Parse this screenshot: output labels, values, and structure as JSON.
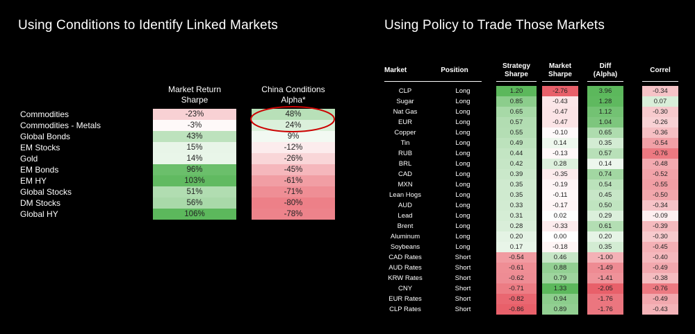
{
  "left_title": "Using Conditions to Identify Linked Markets",
  "right_title": "Using Policy to Trade Those Markets",
  "chart_data": [
    {
      "type": "table",
      "title": "Using Conditions to Identify Linked Markets",
      "columns": [
        "Market Return Sharpe",
        "China Conditions Alpha*"
      ],
      "rows": [
        "Commodities",
        "Commodities - Metals",
        "Global Bonds",
        "EM Stocks",
        "Gold",
        "EM Bonds",
        "EM HY",
        "Global Stocks",
        "DM Stocks",
        "Global HY"
      ],
      "market_return_sharpe": [
        "-23%",
        "-3%",
        "43%",
        "15%",
        "14%",
        "96%",
        "103%",
        "51%",
        "56%",
        "106%"
      ],
      "china_conditions_alpha": [
        "48%",
        "24%",
        "9%",
        "-12%",
        "-26%",
        "-45%",
        "-61%",
        "-71%",
        "-80%",
        "-78%"
      ],
      "annotation": "circled: Commodities and Commodities - Metals alpha values"
    },
    {
      "type": "table",
      "title": "Using Policy to Trade Those Markets",
      "headers": {
        "market": "Market",
        "position": "Position",
        "strategy_sharpe": [
          "Strategy",
          "Sharpe"
        ],
        "market_sharpe": [
          "Market",
          "Sharpe"
        ],
        "diff": [
          "Diff",
          "(Alpha)"
        ],
        "correl": "Correl"
      },
      "rows": [
        {
          "market": "CLP",
          "position": "Long",
          "strategy_sharpe": "1.20",
          "market_sharpe": "-2.76",
          "diff": "3.96",
          "correl": "-0.34"
        },
        {
          "market": "Sugar",
          "position": "Long",
          "strategy_sharpe": "0.85",
          "market_sharpe": "-0.43",
          "diff": "1.28",
          "correl": "0.07"
        },
        {
          "market": "Nat Gas",
          "position": "Long",
          "strategy_sharpe": "0.65",
          "market_sharpe": "-0.47",
          "diff": "1.12",
          "correl": "-0.30"
        },
        {
          "market": "EUR",
          "position": "Long",
          "strategy_sharpe": "0.57",
          "market_sharpe": "-0.47",
          "diff": "1.04",
          "correl": "-0.26"
        },
        {
          "market": "Copper",
          "position": "Long",
          "strategy_sharpe": "0.55",
          "market_sharpe": "-0.10",
          "diff": "0.65",
          "correl": "-0.36"
        },
        {
          "market": "Tin",
          "position": "Long",
          "strategy_sharpe": "0.49",
          "market_sharpe": "0.14",
          "diff": "0.35",
          "correl": "-0.54"
        },
        {
          "market": "RUB",
          "position": "Long",
          "strategy_sharpe": "0.44",
          "market_sharpe": "-0.13",
          "diff": "0.57",
          "correl": "-0.76"
        },
        {
          "market": "BRL",
          "position": "Long",
          "strategy_sharpe": "0.42",
          "market_sharpe": "0.28",
          "diff": "0.14",
          "correl": "-0.48"
        },
        {
          "market": "CAD",
          "position": "Long",
          "strategy_sharpe": "0.39",
          "market_sharpe": "-0.35",
          "diff": "0.74",
          "correl": "-0.52"
        },
        {
          "market": "MXN",
          "position": "Long",
          "strategy_sharpe": "0.35",
          "market_sharpe": "-0.19",
          "diff": "0.54",
          "correl": "-0.55"
        },
        {
          "market": "Lean Hogs",
          "position": "Long",
          "strategy_sharpe": "0.35",
          "market_sharpe": "-0.11",
          "diff": "0.45",
          "correl": "-0.50"
        },
        {
          "market": "AUD",
          "position": "Long",
          "strategy_sharpe": "0.33",
          "market_sharpe": "-0.17",
          "diff": "0.50",
          "correl": "-0.34"
        },
        {
          "market": "Lead",
          "position": "Long",
          "strategy_sharpe": "0.31",
          "market_sharpe": "0.02",
          "diff": "0.29",
          "correl": "-0.09"
        },
        {
          "market": "Brent",
          "position": "Long",
          "strategy_sharpe": "0.28",
          "market_sharpe": "-0.33",
          "diff": "0.61",
          "correl": "-0.39"
        },
        {
          "market": "Aluminum",
          "position": "Long",
          "strategy_sharpe": "0.20",
          "market_sharpe": "0.00",
          "diff": "0.20",
          "correl": "-0.30"
        },
        {
          "market": "Soybeans",
          "position": "Long",
          "strategy_sharpe": "0.17",
          "market_sharpe": "-0.18",
          "diff": "0.35",
          "correl": "-0.45"
        },
        {
          "market": "CAD Rates",
          "position": "Short",
          "strategy_sharpe": "-0.54",
          "market_sharpe": "0.46",
          "diff": "-1.00",
          "correl": "-0.40"
        },
        {
          "market": "AUD Rates",
          "position": "Short",
          "strategy_sharpe": "-0.61",
          "market_sharpe": "0.88",
          "diff": "-1.49",
          "correl": "-0.49"
        },
        {
          "market": "KRW Rates",
          "position": "Short",
          "strategy_sharpe": "-0.62",
          "market_sharpe": "0.79",
          "diff": "-1.41",
          "correl": "-0.38"
        },
        {
          "market": "CNY",
          "position": "Short",
          "strategy_sharpe": "-0.71",
          "market_sharpe": "1.33",
          "diff": "-2.05",
          "correl": "-0.76"
        },
        {
          "market": "EUR Rates",
          "position": "Short",
          "strategy_sharpe": "-0.82",
          "market_sharpe": "0.94",
          "diff": "-1.76",
          "correl": "-0.49"
        },
        {
          "market": "CLP Rates",
          "position": "Short",
          "strategy_sharpe": "-0.86",
          "market_sharpe": "0.89",
          "diff": "-1.76",
          "correl": "-0.43"
        }
      ]
    }
  ],
  "colors": {
    "background": "#000000",
    "positive": "#5cb85c",
    "negative": "#e8606a",
    "neutral": "#ffffff",
    "annotation": "#cc0000"
  }
}
